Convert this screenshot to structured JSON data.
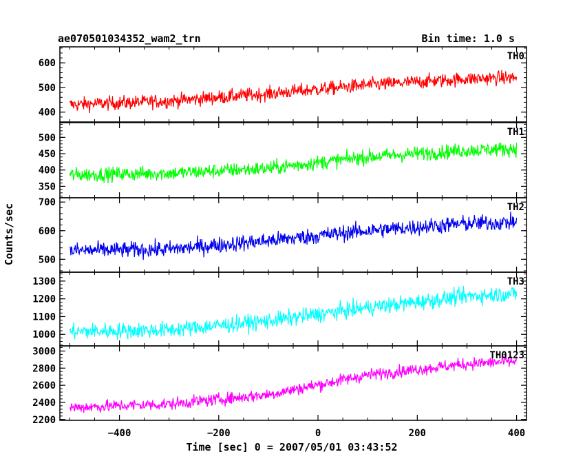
{
  "title_left": "ae070501034352_wam2_trn",
  "title_right": "Bin time: 1.0 s",
  "xlabel": "Time [sec] 0 = 2007/05/01 03:43:52",
  "ylabel": "Counts/sec",
  "chart_data": [
    {
      "type": "line",
      "name": "TH0",
      "color": "#ff0000",
      "xlim": [
        -520,
        420
      ],
      "ylim": [
        360,
        665
      ],
      "xticks": [
        -400,
        -200,
        0,
        200,
        400
      ],
      "yticks": [
        400,
        500,
        600
      ],
      "ytick_labels": [
        "400",
        "500",
        "600"
      ],
      "x_range": [
        -500,
        400
      ],
      "trend_x": [
        -500,
        -300,
        -100,
        100,
        300,
        400
      ],
      "trend_y": [
        430,
        445,
        475,
        510,
        535,
        540
      ],
      "noise": 28,
      "grid": false
    },
    {
      "type": "line",
      "name": "TH1",
      "color": "#00ff00",
      "xlim": [
        -520,
        420
      ],
      "ylim": [
        315,
        545
      ],
      "xticks": [
        -400,
        -200,
        0,
        200,
        400
      ],
      "yticks": [
        350,
        400,
        450,
        500
      ],
      "ytick_labels": [
        "350",
        "400",
        "450",
        "500"
      ],
      "x_range": [
        -500,
        400
      ],
      "trend_x": [
        -500,
        -300,
        -100,
        100,
        300,
        400
      ],
      "trend_y": [
        385,
        390,
        405,
        440,
        460,
        465
      ],
      "noise": 22,
      "grid": false
    },
    {
      "type": "line",
      "name": "TH2",
      "color": "#0000ee",
      "xlim": [
        -520,
        420
      ],
      "ylim": [
        455,
        715
      ],
      "xticks": [
        -400,
        -200,
        0,
        200,
        400
      ],
      "yticks": [
        500,
        600,
        700
      ],
      "ytick_labels": [
        "500",
        "600",
        "700"
      ],
      "x_range": [
        -500,
        400
      ],
      "trend_x": [
        -500,
        -300,
        -100,
        100,
        300,
        400
      ],
      "trend_y": [
        530,
        535,
        565,
        600,
        625,
        630
      ],
      "noise": 28,
      "grid": false
    },
    {
      "type": "line",
      "name": "TH3",
      "color": "#00ffff",
      "xlim": [
        -520,
        420
      ],
      "ylim": [
        935,
        1350
      ],
      "xticks": [
        -400,
        -200,
        0,
        200,
        400
      ],
      "yticks": [
        1000,
        1100,
        1200,
        1300
      ],
      "ytick_labels": [
        "1000",
        "1100",
        "1200",
        "1300"
      ],
      "x_range": [
        -500,
        400
      ],
      "trend_x": [
        -500,
        -300,
        -100,
        100,
        300,
        400
      ],
      "trend_y": [
        1015,
        1025,
        1075,
        1150,
        1215,
        1230
      ],
      "noise": 45,
      "grid": false
    },
    {
      "type": "line",
      "name": "TH0123",
      "color": "#ff00ff",
      "xlim": [
        -520,
        420
      ],
      "ylim": [
        2190,
        3060
      ],
      "xticks": [
        -400,
        -200,
        0,
        200,
        400
      ],
      "yticks": [
        2200,
        2400,
        2600,
        2800,
        3000
      ],
      "ytick_labels": [
        "2200",
        "2400",
        "2600",
        "2800",
        "3000"
      ],
      "x_range": [
        -500,
        400
      ],
      "trend_x": [
        -500,
        -300,
        -100,
        100,
        300,
        400
      ],
      "trend_y": [
        2340,
        2380,
        2490,
        2720,
        2850,
        2880
      ],
      "noise": 70,
      "grid": false
    }
  ],
  "xtick_labels": [
    "−400",
    "−200",
    "0",
    "200",
    "400"
  ]
}
